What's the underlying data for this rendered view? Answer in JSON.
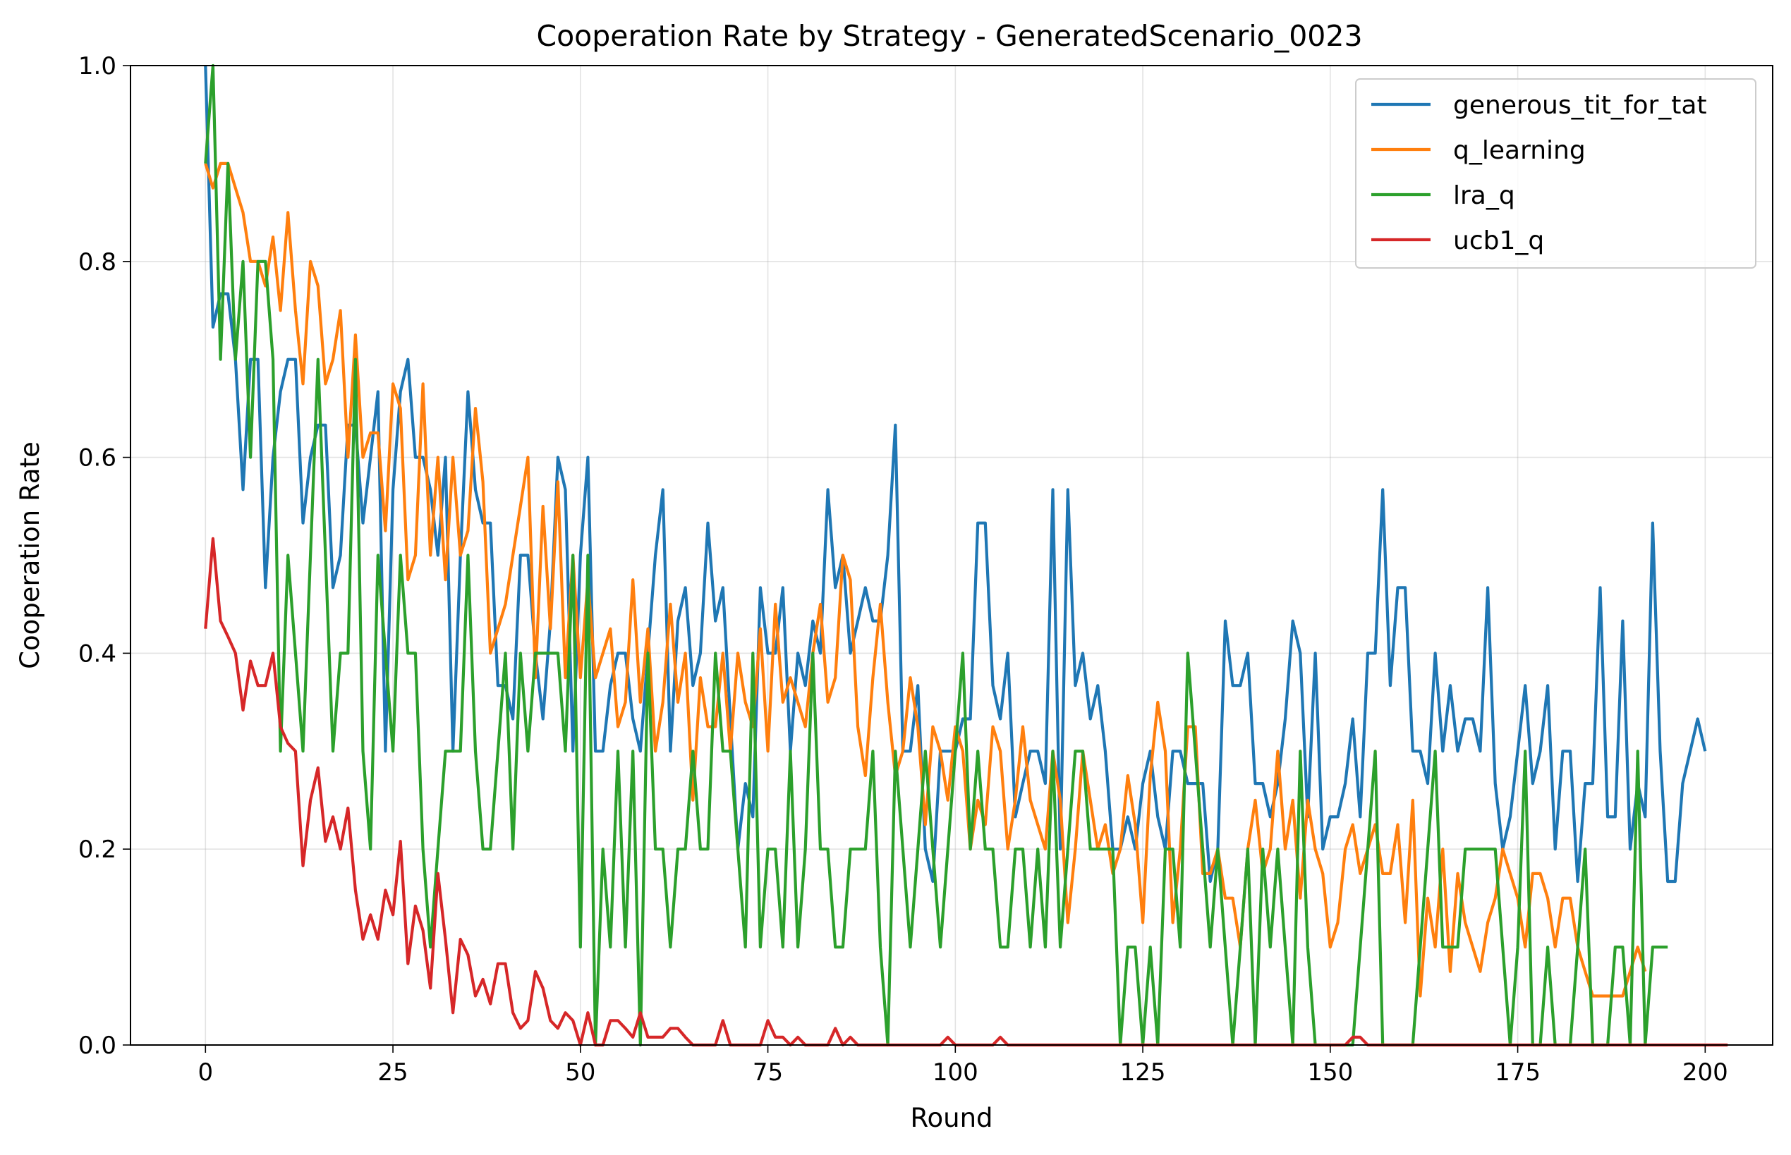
{
  "chart_data": {
    "type": "line",
    "title": "Cooperation Rate by Strategy - GeneratedScenario_0023",
    "xlabel": "Round",
    "ylabel": "Cooperation Rate",
    "xlim": [
      -10,
      209
    ],
    "ylim": [
      0,
      1
    ],
    "xticks": [
      0,
      25,
      50,
      75,
      100,
      125,
      150,
      175,
      200
    ],
    "xtick_labels": [
      "0",
      "25",
      "50",
      "75",
      "100",
      "125",
      "150",
      "175",
      "200"
    ],
    "yticks": [
      0,
      0.2,
      0.4,
      0.6,
      0.8,
      1.0
    ],
    "ytick_labels": [
      "0.0",
      "0.2",
      "0.4",
      "0.6",
      "0.8",
      "1.0"
    ],
    "grid": true,
    "legend_position": "top-right",
    "x_start": 0,
    "series": [
      {
        "name": "generous_tit_for_tat",
        "color": "#1f77b4",
        "values": [
          1.0,
          0.733,
          0.767,
          0.767,
          0.7,
          0.567,
          0.7,
          0.7,
          0.467,
          0.6,
          0.667,
          0.7,
          0.7,
          0.533,
          0.6,
          0.633,
          0.633,
          0.467,
          0.5,
          0.633,
          0.633,
          0.533,
          0.6,
          0.667,
          0.3,
          0.567,
          0.667,
          0.7,
          0.6,
          0.6,
          0.567,
          0.5,
          0.6,
          0.3,
          0.5,
          0.667,
          0.567,
          0.533,
          0.533,
          0.367,
          0.367,
          0.333,
          0.5,
          0.5,
          0.4,
          0.333,
          0.433,
          0.6,
          0.567,
          0.3,
          0.5,
          0.6,
          0.3,
          0.3,
          0.367,
          0.4,
          0.4,
          0.333,
          0.3,
          0.4,
          0.5,
          0.567,
          0.3,
          0.433,
          0.467,
          0.367,
          0.4,
          0.533,
          0.433,
          0.467,
          0.333,
          0.2,
          0.267,
          0.233,
          0.467,
          0.4,
          0.4,
          0.467,
          0.3,
          0.4,
          0.367,
          0.433,
          0.4,
          0.567,
          0.467,
          0.5,
          0.4,
          0.433,
          0.467,
          0.433,
          0.433,
          0.5,
          0.633,
          0.3,
          0.3,
          0.367,
          0.2,
          0.167,
          0.3,
          0.3,
          0.3,
          0.333,
          0.333,
          0.533,
          0.533,
          0.367,
          0.333,
          0.4,
          0.233,
          0.267,
          0.3,
          0.3,
          0.267,
          0.567,
          0.2,
          0.567,
          0.367,
          0.4,
          0.333,
          0.367,
          0.3,
          0.2,
          0.2,
          0.233,
          0.2,
          0.267,
          0.3,
          0.233,
          0.2,
          0.3,
          0.3,
          0.267,
          0.267,
          0.267,
          0.167,
          0.2,
          0.433,
          0.367,
          0.367,
          0.4,
          0.267,
          0.267,
          0.233,
          0.267,
          0.333,
          0.433,
          0.4,
          0.233,
          0.4,
          0.2,
          0.233,
          0.233,
          0.267,
          0.333,
          0.233,
          0.4,
          0.4,
          0.567,
          0.367,
          0.467,
          0.467,
          0.3,
          0.3,
          0.267,
          0.4,
          0.3,
          0.367,
          0.3,
          0.333,
          0.333,
          0.3,
          0.467,
          0.267,
          0.2,
          0.233,
          0.3,
          0.367,
          0.267,
          0.3,
          0.367,
          0.2,
          0.3,
          0.3,
          0.167,
          0.267,
          0.267,
          0.467,
          0.233,
          0.233,
          0.433,
          0.2,
          0.267,
          0.233,
          0.533,
          0.3,
          0.167,
          0.167,
          0.267,
          0.3,
          0.333,
          0.3
        ]
      },
      {
        "name": "q_learning",
        "color": "#ff7f0e",
        "values": [
          0.9,
          0.875,
          0.9,
          0.9,
          0.875,
          0.85,
          0.8,
          0.8,
          0.775,
          0.825,
          0.75,
          0.85,
          0.75,
          0.675,
          0.8,
          0.775,
          0.675,
          0.7,
          0.75,
          0.6,
          0.725,
          0.6,
          0.625,
          0.625,
          0.525,
          0.675,
          0.65,
          0.475,
          0.5,
          0.675,
          0.5,
          0.6,
          0.475,
          0.6,
          0.5,
          0.525,
          0.65,
          0.575,
          0.4,
          0.425,
          0.45,
          0.5,
          0.55,
          0.6,
          0.375,
          0.55,
          0.425,
          0.575,
          0.375,
          0.5,
          0.375,
          0.475,
          0.375,
          0.4,
          0.425,
          0.325,
          0.35,
          0.475,
          0.35,
          0.425,
          0.3,
          0.35,
          0.45,
          0.35,
          0.4,
          0.25,
          0.375,
          0.325,
          0.325,
          0.4,
          0.3,
          0.4,
          0.35,
          0.325,
          0.425,
          0.3,
          0.45,
          0.35,
          0.375,
          0.35,
          0.325,
          0.4,
          0.45,
          0.35,
          0.375,
          0.5,
          0.475,
          0.325,
          0.275,
          0.375,
          0.45,
          0.35,
          0.275,
          0.3,
          0.375,
          0.325,
          0.225,
          0.325,
          0.3,
          0.25,
          0.325,
          0.3,
          0.2,
          0.25,
          0.225,
          0.325,
          0.3,
          0.2,
          0.25,
          0.325,
          0.25,
          0.225,
          0.2,
          0.3,
          0.25,
          0.125,
          0.2,
          0.3,
          0.25,
          0.2,
          0.225,
          0.175,
          0.2,
          0.275,
          0.225,
          0.125,
          0.275,
          0.35,
          0.3,
          0.125,
          0.2,
          0.325,
          0.325,
          0.175,
          0.175,
          0.2,
          0.15,
          0.15,
          0.1,
          0.2,
          0.25,
          0.175,
          0.2,
          0.3,
          0.2,
          0.25,
          0.15,
          0.25,
          0.2,
          0.175,
          0.1,
          0.125,
          0.2,
          0.225,
          0.175,
          0.2,
          0.225,
          0.175,
          0.175,
          0.225,
          0.125,
          0.25,
          0.05,
          0.15,
          0.1,
          0.2,
          0.075,
          0.175,
          0.125,
          0.1,
          0.075,
          0.125,
          0.15,
          0.2,
          0.175,
          0.15,
          0.1,
          0.175,
          0.175,
          0.15,
          0.1,
          0.15,
          0.15,
          0.1,
          0.075,
          0.05,
          0.05,
          0.05,
          0.05,
          0.05,
          0.075,
          0.1,
          0.075
        ]
      },
      {
        "name": "lra_q",
        "color": "#2ca02c",
        "values": [
          0.9,
          1.0,
          0.7,
          0.9,
          0.7,
          0.8,
          0.6,
          0.8,
          0.8,
          0.7,
          0.3,
          0.5,
          0.4,
          0.3,
          0.5,
          0.7,
          0.5,
          0.3,
          0.4,
          0.4,
          0.7,
          0.3,
          0.2,
          0.5,
          0.4,
          0.3,
          0.5,
          0.4,
          0.4,
          0.2,
          0.1,
          0.2,
          0.3,
          0.3,
          0.3,
          0.5,
          0.3,
          0.2,
          0.2,
          0.3,
          0.4,
          0.2,
          0.4,
          0.3,
          0.4,
          0.4,
          0.4,
          0.4,
          0.3,
          0.5,
          0.1,
          0.5,
          0.0,
          0.2,
          0.1,
          0.3,
          0.1,
          0.3,
          0.0,
          0.4,
          0.2,
          0.2,
          0.1,
          0.2,
          0.2,
          0.3,
          0.2,
          0.2,
          0.4,
          0.3,
          0.3,
          0.2,
          0.1,
          0.4,
          0.1,
          0.2,
          0.2,
          0.1,
          0.3,
          0.1,
          0.2,
          0.4,
          0.2,
          0.2,
          0.1,
          0.1,
          0.2,
          0.2,
          0.2,
          0.3,
          0.1,
          0.0,
          0.3,
          0.2,
          0.1,
          0.2,
          0.3,
          0.2,
          0.1,
          0.2,
          0.3,
          0.4,
          0.2,
          0.3,
          0.2,
          0.2,
          0.1,
          0.1,
          0.2,
          0.2,
          0.1,
          0.2,
          0.1,
          0.3,
          0.1,
          0.2,
          0.3,
          0.3,
          0.2,
          0.2,
          0.2,
          0.2,
          0.0,
          0.1,
          0.1,
          0.0,
          0.1,
          0.0,
          0.2,
          0.2,
          0.1,
          0.4,
          0.3,
          0.2,
          0.1,
          0.2,
          0.1,
          0.0,
          0.1,
          0.2,
          0.0,
          0.2,
          0.1,
          0.2,
          0.1,
          0.0,
          0.3,
          0.1,
          0.0,
          0.0,
          0.0,
          0.0,
          0.0,
          0.0,
          0.1,
          0.2,
          0.3,
          0.0,
          0.0,
          0.0,
          0.0,
          0.0,
          0.1,
          0.2,
          0.3,
          0.1,
          0.1,
          0.1,
          0.2,
          0.2,
          0.2,
          0.2,
          0.2,
          0.1,
          0.0,
          0.1,
          0.3,
          0.0,
          0.0,
          0.1,
          0.0,
          0.0,
          0.0,
          0.1,
          0.2,
          0.0,
          0.0,
          0.0,
          0.1,
          0.1,
          0.0,
          0.3,
          0.0,
          0.1,
          0.1,
          0.1
        ]
      },
      {
        "name": "ucb1_q",
        "color": "#d62728",
        "values": [
          0.425,
          0.517,
          0.433,
          0.417,
          0.4,
          0.342,
          0.392,
          0.367,
          0.367,
          0.4,
          0.325,
          0.308,
          0.3,
          0.183,
          0.25,
          0.283,
          0.208,
          0.233,
          0.2,
          0.242,
          0.158,
          0.108,
          0.133,
          0.108,
          0.158,
          0.133,
          0.208,
          0.083,
          0.142,
          0.117,
          0.058,
          0.175,
          0.108,
          0.033,
          0.108,
          0.092,
          0.05,
          0.067,
          0.042,
          0.083,
          0.083,
          0.033,
          0.017,
          0.025,
          0.075,
          0.058,
          0.025,
          0.017,
          0.033,
          0.025,
          0.0,
          0.033,
          0.0,
          0.0,
          0.025,
          0.025,
          0.017,
          0.008,
          0.033,
          0.008,
          0.008,
          0.008,
          0.017,
          0.017,
          0.008,
          0.0,
          0.0,
          0.0,
          0.0,
          0.025,
          0.0,
          0.0,
          0.0,
          0.0,
          0.0,
          0.025,
          0.008,
          0.008,
          0.0,
          0.008,
          0.0,
          0.0,
          0.0,
          0.0,
          0.017,
          0.0,
          0.008,
          0.0,
          0.0,
          0.0,
          0.0,
          0.0,
          0.0,
          0.0,
          0.0,
          0.0,
          0.0,
          0.0,
          0.0,
          0.008,
          0.0,
          0.0,
          0.0,
          0.0,
          0.0,
          0.0,
          0.008,
          0.0,
          0.0,
          0.0,
          0.0,
          0.0,
          0.0,
          0.0,
          0.0,
          0.0,
          0.0,
          0.0,
          0.0,
          0.0,
          0.0,
          0.0,
          0.0,
          0.0,
          0.0,
          0.0,
          0.0,
          0.0,
          0.0,
          0.0,
          0.0,
          0.0,
          0.0,
          0.0,
          0.0,
          0.0,
          0.0,
          0.0,
          0.0,
          0.0,
          0.0,
          0.0,
          0.0,
          0.0,
          0.0,
          0.0,
          0.0,
          0.0,
          0.0,
          0.0,
          0.0,
          0.0,
          0.0,
          0.008,
          0.008,
          0.0,
          0.0,
          0.0,
          0.0,
          0.0,
          0.0,
          0.0,
          0.0,
          0.0,
          0.0,
          0.0,
          0.0,
          0.0,
          0.0,
          0.0,
          0.0,
          0.0,
          0.0,
          0.0,
          0.0,
          0.0,
          0.0,
          0.0,
          0.0,
          0.0,
          0.0,
          0.0,
          0.0,
          0.0,
          0.0,
          0.0,
          0.0,
          0.0,
          0.0,
          0.0,
          0.0,
          0.0,
          0.0,
          0.0,
          0.0,
          0.0,
          0.0,
          0.0,
          0.0,
          0.0,
          0.0,
          0.0,
          0.0,
          0.0
        ]
      }
    ]
  }
}
